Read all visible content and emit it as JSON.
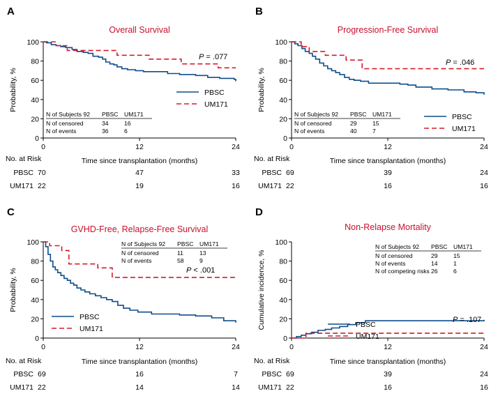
{
  "chart_data": [
    {
      "id": "A",
      "type": "line",
      "title": "Overall Survival",
      "xlabel": "Time since transplantation (months)",
      "ylabel": "Probability, %",
      "xlim": [
        0,
        24
      ],
      "ylim": [
        0,
        100
      ],
      "xticks": [
        "0",
        "12",
        "24"
      ],
      "yticks": [
        "0",
        "20",
        "40",
        "60",
        "80",
        "100"
      ],
      "legend": "right",
      "p_value": ".077",
      "colors": {
        "PBSC": "#0e4c8a",
        "UM171": "#d7192c"
      },
      "series": [
        {
          "name": "PBSC",
          "style": "solid",
          "x": [
            0,
            0.4,
            1.0,
            1.6,
            2.2,
            2.8,
            3.6,
            4.2,
            5.0,
            5.6,
            6.2,
            6.9,
            7.4,
            7.8,
            8.3,
            8.8,
            9.2,
            9.8,
            10.5,
            11.5,
            12.5,
            14.0,
            15.5,
            17.0,
            19.0,
            20.5,
            22.0,
            23.8,
            24
          ],
          "y": [
            100,
            99,
            97,
            96,
            95,
            94,
            92,
            90,
            89,
            88,
            85,
            84,
            82,
            79,
            77,
            76,
            74,
            72,
            71,
            70,
            69,
            69,
            67,
            66,
            65,
            63,
            62,
            61,
            59
          ]
        },
        {
          "name": "UM171",
          "style": "dashed",
          "x": [
            0,
            1.6,
            3.0,
            6.2,
            9.2,
            13.2,
            17.2,
            21.8,
            24
          ],
          "y": [
            100,
            96,
            91,
            91,
            86,
            82,
            77,
            73,
            73
          ]
        }
      ],
      "table": {
        "header": [
          "N of Subjects 92",
          "PBSC",
          "UM171"
        ],
        "rows": [
          [
            "N of censored",
            "34",
            "16"
          ],
          [
            "N of events",
            "36",
            "6"
          ]
        ]
      },
      "risk_table": {
        "label": "No. at Risk",
        "rows": [
          {
            "name": "PBSC",
            "first": "70",
            "mid": "47",
            "last": "33"
          },
          {
            "name": "UM171",
            "first": "22",
            "mid": "19",
            "last": "16"
          }
        ]
      }
    },
    {
      "id": "B",
      "type": "line",
      "title": "Progression-Free Survival",
      "xlabel": "Time since transplantation (months)",
      "ylabel": "Probability, %",
      "xlim": [
        0,
        24
      ],
      "ylim": [
        0,
        100
      ],
      "xticks": [
        "0",
        "12",
        "24"
      ],
      "yticks": [
        "0",
        "20",
        "40",
        "60",
        "80",
        "100"
      ],
      "legend": "right",
      "p_value": ".046",
      "colors": {
        "PBSC": "#0e4c8a",
        "UM171": "#d7192c"
      },
      "series": [
        {
          "name": "PBSC",
          "style": "solid",
          "x": [
            0,
            0.4,
            0.8,
            1.3,
            1.7,
            2.2,
            2.6,
            3.0,
            3.5,
            4.0,
            4.5,
            5.0,
            5.5,
            6.0,
            6.6,
            7.2,
            7.8,
            8.6,
            9.6,
            11.0,
            12.5,
            13.5,
            14.5,
            15.5,
            17.5,
            19.5,
            21.5,
            23.0,
            24
          ],
          "y": [
            100,
            98,
            96,
            93,
            90,
            88,
            85,
            82,
            78,
            75,
            72,
            70,
            68,
            66,
            63,
            61,
            60,
            59,
            57,
            57,
            57,
            56,
            55,
            53,
            51,
            50,
            48,
            47,
            45
          ]
        },
        {
          "name": "UM171",
          "style": "dashed",
          "x": [
            0,
            1.2,
            2.2,
            4.2,
            6.8,
            8.8,
            24
          ],
          "y": [
            100,
            95,
            90,
            86,
            81,
            72,
            72
          ]
        }
      ],
      "table": {
        "header": [
          "N of Subjects 92",
          "PBSC",
          "UM171"
        ],
        "rows": [
          [
            "N of censored",
            "29",
            "15"
          ],
          [
            "N of events",
            "40",
            "7"
          ]
        ]
      },
      "risk_table": {
        "label": "No. at Risk",
        "rows": [
          {
            "name": "PBSC",
            "first": "69",
            "mid": "39",
            "last": "24"
          },
          {
            "name": "UM171",
            "first": "22",
            "mid": "16",
            "last": "16"
          }
        ]
      }
    },
    {
      "id": "C",
      "type": "line",
      "title": "GVHD-Free, Relapse-Free Survival",
      "xlabel": "Time since transplantation (months)",
      "ylabel": "Probability, %",
      "xlim": [
        0,
        24
      ],
      "ylim": [
        0,
        100
      ],
      "xticks": [
        "0",
        "12",
        "24"
      ],
      "yticks": [
        "0",
        "20",
        "40",
        "60",
        "80",
        "100"
      ],
      "legend": "bottom-left",
      "p_value": ".001",
      "p_operator": "<",
      "colors": {
        "PBSC": "#0e4c8a",
        "UM171": "#d7192c"
      },
      "series": [
        {
          "name": "PBSC",
          "style": "solid",
          "x": [
            0,
            0.3,
            0.6,
            0.9,
            1.2,
            1.5,
            1.8,
            2.2,
            2.6,
            3.0,
            3.4,
            3.8,
            4.2,
            4.7,
            5.2,
            5.8,
            6.5,
            7.2,
            7.9,
            8.6,
            9.3,
            10.0,
            10.8,
            11.8,
            13.5,
            15.5,
            17.0,
            19.0,
            21.0,
            22.5,
            24
          ],
          "y": [
            100,
            95,
            87,
            80,
            74,
            71,
            68,
            65,
            62,
            60,
            57,
            55,
            52,
            50,
            48,
            46,
            44,
            42,
            40,
            38,
            34,
            31,
            29,
            27,
            25,
            25,
            24,
            23,
            21,
            18,
            16
          ]
        },
        {
          "name": "UM171",
          "style": "dashed",
          "x": [
            0,
            0.8,
            2.3,
            3.2,
            6.8,
            8.6,
            24
          ],
          "y": [
            100,
            96,
            91,
            77,
            73,
            63,
            63
          ]
        }
      ],
      "table": {
        "header": [
          "N of Subjects 92",
          "PBSC",
          "UM171"
        ],
        "rows": [
          [
            "N of censored",
            "11",
            "13"
          ],
          [
            "N of events",
            "58",
            "9"
          ]
        ]
      },
      "risk_table": {
        "label": "No. at Risk",
        "rows": [
          {
            "name": "PBSC",
            "first": "69",
            "mid": "16",
            "last": "7"
          },
          {
            "name": "UM171",
            "first": "22",
            "mid": "14",
            "last": "14"
          }
        ]
      }
    },
    {
      "id": "D",
      "type": "line",
      "title": "Non-Relapse Mortality",
      "xlabel": "Time since transplantation (months)",
      "ylabel": "Cumulative incidence, %",
      "xlim": [
        0,
        24
      ],
      "ylim": [
        0,
        100
      ],
      "xticks": [
        "0",
        "12",
        "24"
      ],
      "yticks": [
        "0",
        "20",
        "40",
        "60",
        "80",
        "100"
      ],
      "legend": "center-left",
      "p_value": ".107",
      "colors": {
        "PBSC": "#0e4c8a",
        "UM171": "#d7192c"
      },
      "series": [
        {
          "name": "PBSC",
          "style": "solid",
          "x": [
            0,
            0.6,
            1.2,
            1.8,
            2.5,
            3.3,
            4.2,
            5.0,
            6.0,
            7.0,
            8.0,
            9.2,
            24
          ],
          "y": [
            0,
            1.5,
            3,
            4.5,
            6,
            8,
            9,
            10.5,
            12,
            14,
            16,
            18,
            19
          ]
        },
        {
          "name": "UM171",
          "style": "dashed",
          "x": [
            0,
            1.0,
            1.8,
            24
          ],
          "y": [
            0,
            0,
            5,
            5
          ]
        }
      ],
      "table": {
        "header": [
          "N of Subjects 92",
          "PBSC",
          "UM171"
        ],
        "rows": [
          [
            "N of censored",
            "29",
            "15"
          ],
          [
            "N of events",
            "14",
            "1"
          ],
          [
            "N of competing risks",
            "26",
            "6"
          ]
        ]
      },
      "risk_table": {
        "label": "No. at Risk",
        "rows": [
          {
            "name": "PBSC",
            "first": "69",
            "mid": "39",
            "last": "24"
          },
          {
            "name": "UM171",
            "first": "22",
            "mid": "16",
            "last": "16"
          }
        ]
      }
    }
  ]
}
